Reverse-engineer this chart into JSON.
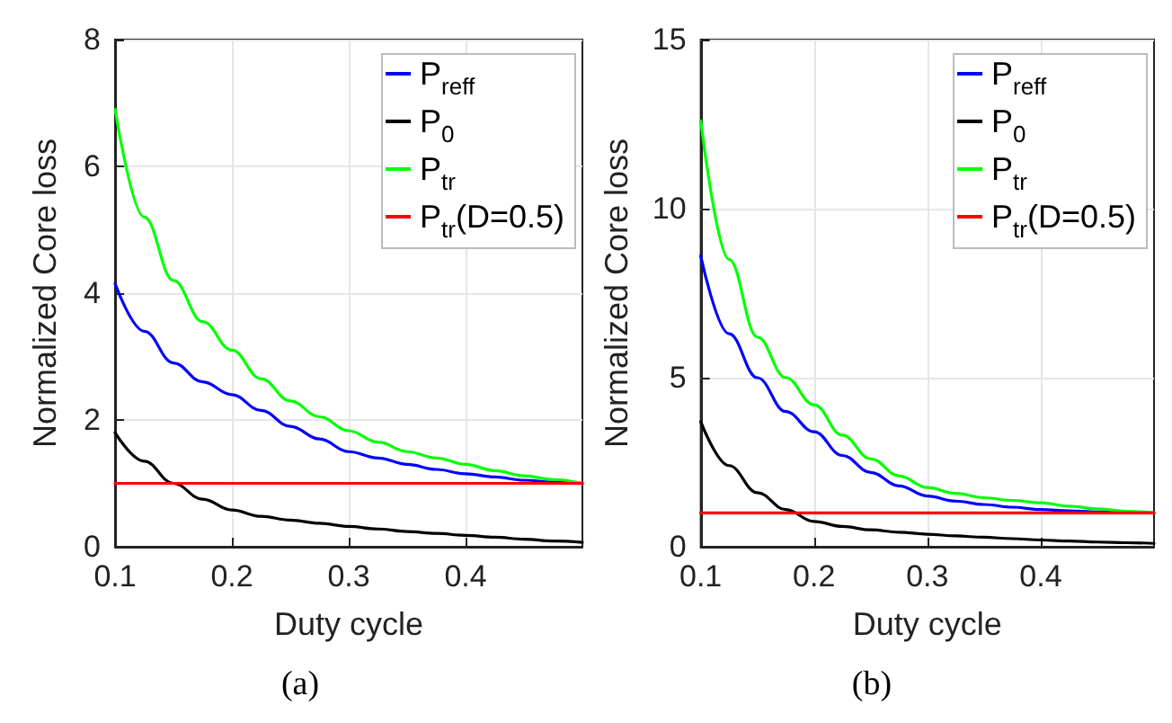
{
  "chart_data": [
    {
      "type": "line",
      "xlabel": "Duty cycle",
      "ylabel": "Normalized Core loss",
      "annotations": [
        "(a)"
      ],
      "xlim": [
        0.1,
        0.5
      ],
      "xticks": [
        0.1,
        0.2,
        0.3,
        0.4
      ],
      "ylim": [
        0,
        8
      ],
      "yticks": [
        0,
        2,
        4,
        6,
        8
      ],
      "grid": true,
      "legend": "top right",
      "marker": "none",
      "line_style": "solid",
      "x": [
        0.1,
        0.125,
        0.15,
        0.175,
        0.2,
        0.225,
        0.25,
        0.275,
        0.3,
        0.325,
        0.35,
        0.375,
        0.4,
        0.425,
        0.45,
        0.475,
        0.5
      ],
      "series": [
        {
          "name": "P$_{reff}$",
          "color": "#0000ff",
          "values": [
            4.15,
            3.4,
            2.9,
            2.6,
            2.4,
            2.15,
            1.9,
            1.7,
            1.5,
            1.4,
            1.3,
            1.22,
            1.15,
            1.1,
            1.05,
            1.02,
            1.0
          ]
        },
        {
          "name": "P$_{0}$",
          "color": "#000000",
          "values": [
            1.8,
            1.35,
            1.0,
            0.75,
            0.58,
            0.48,
            0.42,
            0.37,
            0.32,
            0.28,
            0.24,
            0.21,
            0.18,
            0.15,
            0.12,
            0.09,
            0.07
          ]
        },
        {
          "name": "P$_{tr}$",
          "color": "#00ff00",
          "values": [
            6.9,
            5.2,
            4.2,
            3.55,
            3.1,
            2.65,
            2.3,
            2.05,
            1.83,
            1.65,
            1.5,
            1.4,
            1.3,
            1.2,
            1.12,
            1.06,
            1.0
          ]
        },
        {
          "name": "P$_{tr}$(D=0.5)",
          "color": "#ff0000",
          "values": [
            1,
            1,
            1,
            1,
            1,
            1,
            1,
            1,
            1,
            1,
            1,
            1,
            1,
            1,
            1,
            1,
            1
          ]
        }
      ]
    },
    {
      "type": "line",
      "xlabel": "Duty cycle",
      "ylabel": "Normalized Core loss",
      "annotations": [
        "(b)"
      ],
      "xlim": [
        0.1,
        0.5
      ],
      "xticks": [
        0.1,
        0.2,
        0.3,
        0.4
      ],
      "ylim": [
        0,
        15
      ],
      "yticks": [
        0,
        5,
        10,
        15
      ],
      "grid": true,
      "legend": "top right",
      "marker": "none",
      "line_style": "solid",
      "x": [
        0.1,
        0.125,
        0.15,
        0.175,
        0.2,
        0.225,
        0.25,
        0.275,
        0.3,
        0.325,
        0.35,
        0.375,
        0.4,
        0.425,
        0.45,
        0.475,
        0.5
      ],
      "series": [
        {
          "name": "P$_{reff}$",
          "color": "#0000ff",
          "values": [
            8.6,
            6.3,
            5.0,
            4.0,
            3.4,
            2.7,
            2.2,
            1.8,
            1.5,
            1.35,
            1.25,
            1.17,
            1.1,
            1.06,
            1.03,
            1.01,
            1.0
          ]
        },
        {
          "name": "P$_{0}$",
          "color": "#000000",
          "values": [
            3.7,
            2.4,
            1.6,
            1.1,
            0.75,
            0.6,
            0.5,
            0.43,
            0.37,
            0.32,
            0.28,
            0.24,
            0.2,
            0.17,
            0.14,
            0.12,
            0.1
          ]
        },
        {
          "name": "P$_{tr}$",
          "color": "#00ff00",
          "values": [
            12.6,
            8.5,
            6.2,
            5.0,
            4.2,
            3.3,
            2.6,
            2.1,
            1.75,
            1.58,
            1.45,
            1.37,
            1.3,
            1.2,
            1.12,
            1.05,
            1.0
          ]
        },
        {
          "name": "P$_{tr}$(D=0.5)",
          "color": "#ff0000",
          "values": [
            1,
            1,
            1,
            1,
            1,
            1,
            1,
            1,
            1,
            1,
            1,
            1,
            1,
            1,
            1,
            1,
            1
          ]
        }
      ]
    }
  ]
}
